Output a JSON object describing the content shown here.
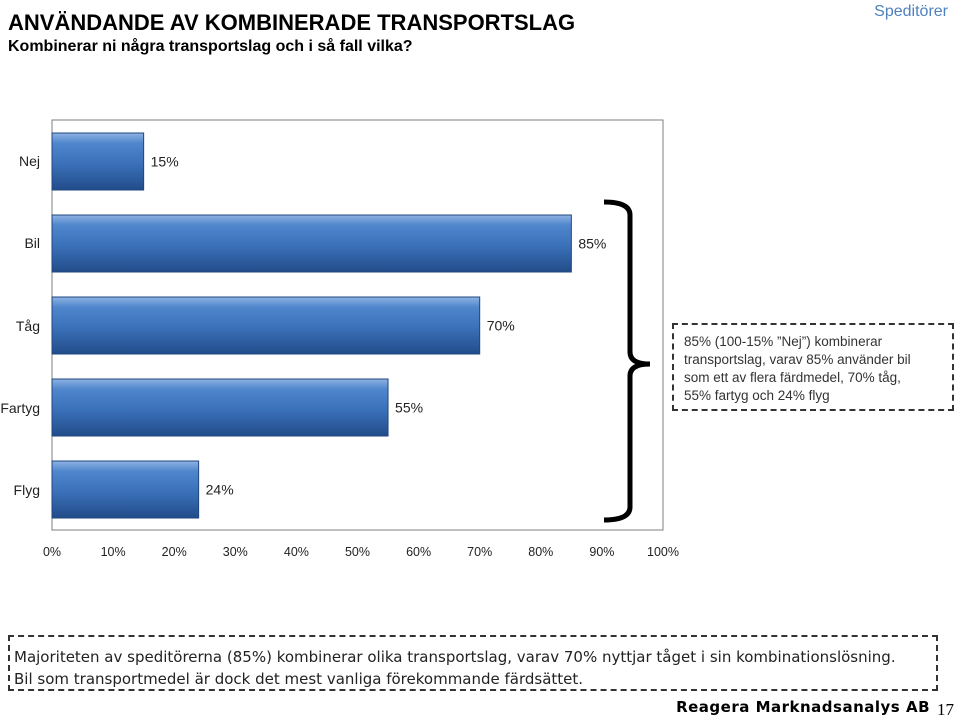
{
  "slide": {
    "title": "ANVÄNDANDE AV KOMBINERADE TRANSPORTSLAG",
    "subtitle": "Kombinerar ni några transportslag och i så fall vilka?",
    "badge": "Speditörer",
    "footer": "Reagera Marknadsanalys AB",
    "page_number": "17"
  },
  "callout": {
    "lines": [
      "85% (100-15% ”Nej”) kombinerar",
      "transportslag, varav 85% använder bil",
      "som ett av flera färdmedel, 70% tåg,",
      "55% fartyg och 24% flyg"
    ]
  },
  "note": {
    "lines": [
      "Majoriteten av speditörerna (85%) kombinerar olika transportslag, varav 70% nyttjar tåget i sin kombinationslösning.",
      "Bil som transportmedel är dock det mest vanliga förekommande färdsättet."
    ]
  },
  "chart_data": {
    "type": "bar",
    "orientation": "horizontal",
    "categories": [
      "Nej",
      "Bil",
      "Tåg",
      "Fartyg",
      "Flyg"
    ],
    "values": [
      15,
      85,
      70,
      55,
      24
    ],
    "value_labels": [
      "15%",
      "85%",
      "70%",
      "55%",
      "24%"
    ],
    "xlim": [
      0,
      100
    ],
    "x_ticks": [
      "0%",
      "10%",
      "20%",
      "30%",
      "40%",
      "50%",
      "60%",
      "70%",
      "80%",
      "90%",
      "100%"
    ],
    "grid": false,
    "legend": "none",
    "bar_color": "#3a70b8"
  }
}
